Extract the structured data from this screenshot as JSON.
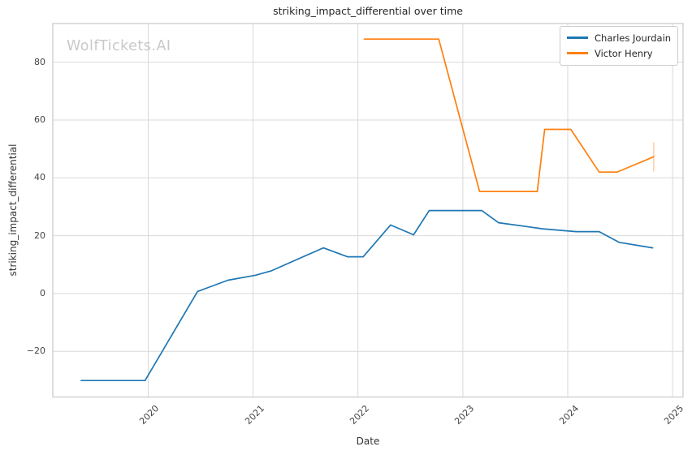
{
  "watermark": "WolfTickets.AI",
  "title": "striking_impact_differential over time",
  "x_axis": {
    "label": "Date",
    "tick_labels": [
      "2020",
      "2021",
      "2022",
      "2023",
      "2024",
      "2025"
    ]
  },
  "y_axis": {
    "label": "striking_impact_differential",
    "tick_labels": [
      "−20",
      "0",
      "20",
      "40",
      "60",
      "80"
    ]
  },
  "legend": {
    "position": "upper right",
    "items": [
      {
        "label": "Charles Jourdain",
        "color": "#1f77b4"
      },
      {
        "label": "Victor Henry",
        "color": "#ff7f0e"
      }
    ]
  },
  "chart_data": {
    "type": "line",
    "title": "striking_impact_differential over time",
    "xlabel": "Date",
    "ylabel": "striking_impact_differential",
    "xlim": [
      2019.09,
      2025.1
    ],
    "ylim": [
      -35.8,
      93.4
    ],
    "x_ticks": [
      2020,
      2021,
      2022,
      2023,
      2024,
      2025
    ],
    "y_ticks": [
      -20,
      0,
      20,
      40,
      60,
      80
    ],
    "grid": true,
    "legend_position": "upper right",
    "series": [
      {
        "name": "Charles Jourdain",
        "color": "#1f77b4",
        "x": [
          2019.36,
          2019.97,
          2020.47,
          2020.76,
          2021.02,
          2021.17,
          2021.67,
          2021.9,
          2022.05,
          2022.31,
          2022.53,
          2022.68,
          2023.18,
          2023.34,
          2023.6,
          2023.76,
          2024.08,
          2024.3,
          2024.49,
          2024.81
        ],
        "y": [
          -30.1,
          -30.1,
          0.7,
          4.6,
          6.3,
          7.8,
          15.8,
          12.7,
          12.7,
          23.7,
          20.3,
          28.7,
          28.7,
          24.5,
          23.2,
          22.4,
          21.4,
          21.4,
          17.7,
          15.8
        ]
      },
      {
        "name": "Victor Henry",
        "color": "#ff7f0e",
        "x": [
          2022.06,
          2022.77,
          2023.16,
          2023.71,
          2023.78,
          2024.03,
          2024.3,
          2024.47,
          2024.82
        ],
        "y": [
          88.0,
          88.0,
          35.3,
          35.3,
          56.8,
          56.8,
          42.0,
          42.0,
          47.3
        ],
        "last_point_error_bar": {
          "x": 2024.82,
          "y_low": 42.2,
          "y_high": 52.3
        }
      }
    ]
  }
}
